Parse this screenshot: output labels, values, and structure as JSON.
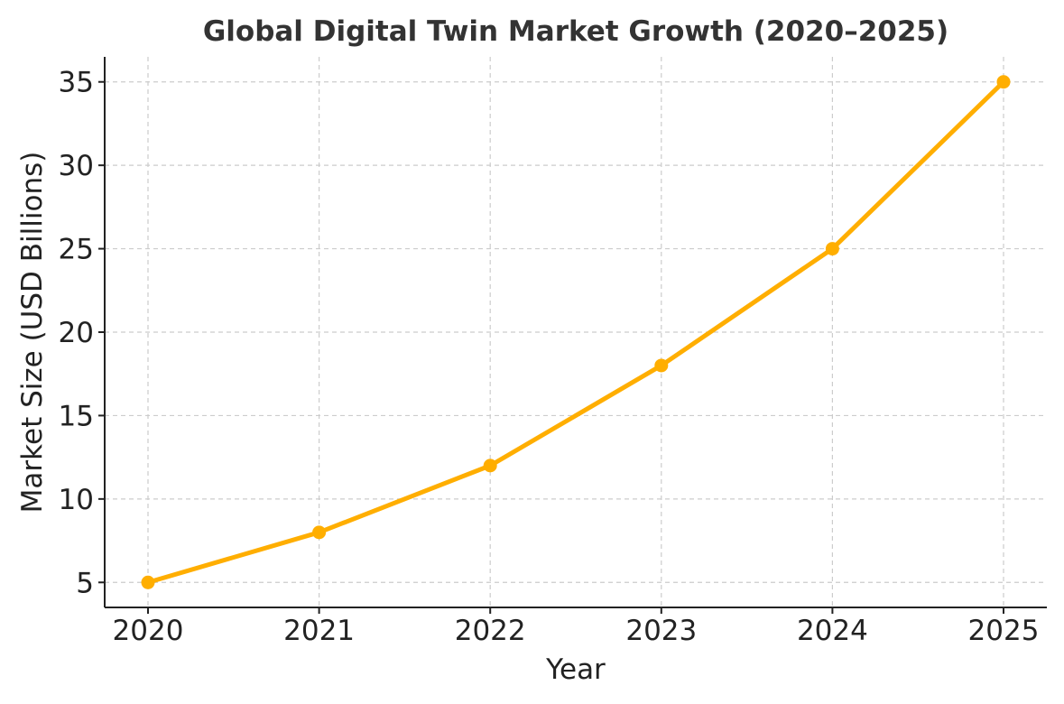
{
  "chart_data": {
    "type": "line",
    "title": "Global Digital Twin Market Growth (2020–2025)",
    "xlabel": "Year",
    "ylabel": "Market Size (USD Billions)",
    "categories": [
      "2020",
      "2021",
      "2022",
      "2023",
      "2024",
      "2025"
    ],
    "series": [
      {
        "name": "Market Size",
        "values": [
          5,
          8,
          12,
          18,
          25,
          35
        ]
      }
    ],
    "yticks": [
      5,
      10,
      15,
      20,
      25,
      30,
      35
    ],
    "ylim": [
      3.5,
      36.5
    ],
    "grid": true,
    "colors": {
      "line": "#FFAE00",
      "marker": "#FFAE00"
    }
  }
}
